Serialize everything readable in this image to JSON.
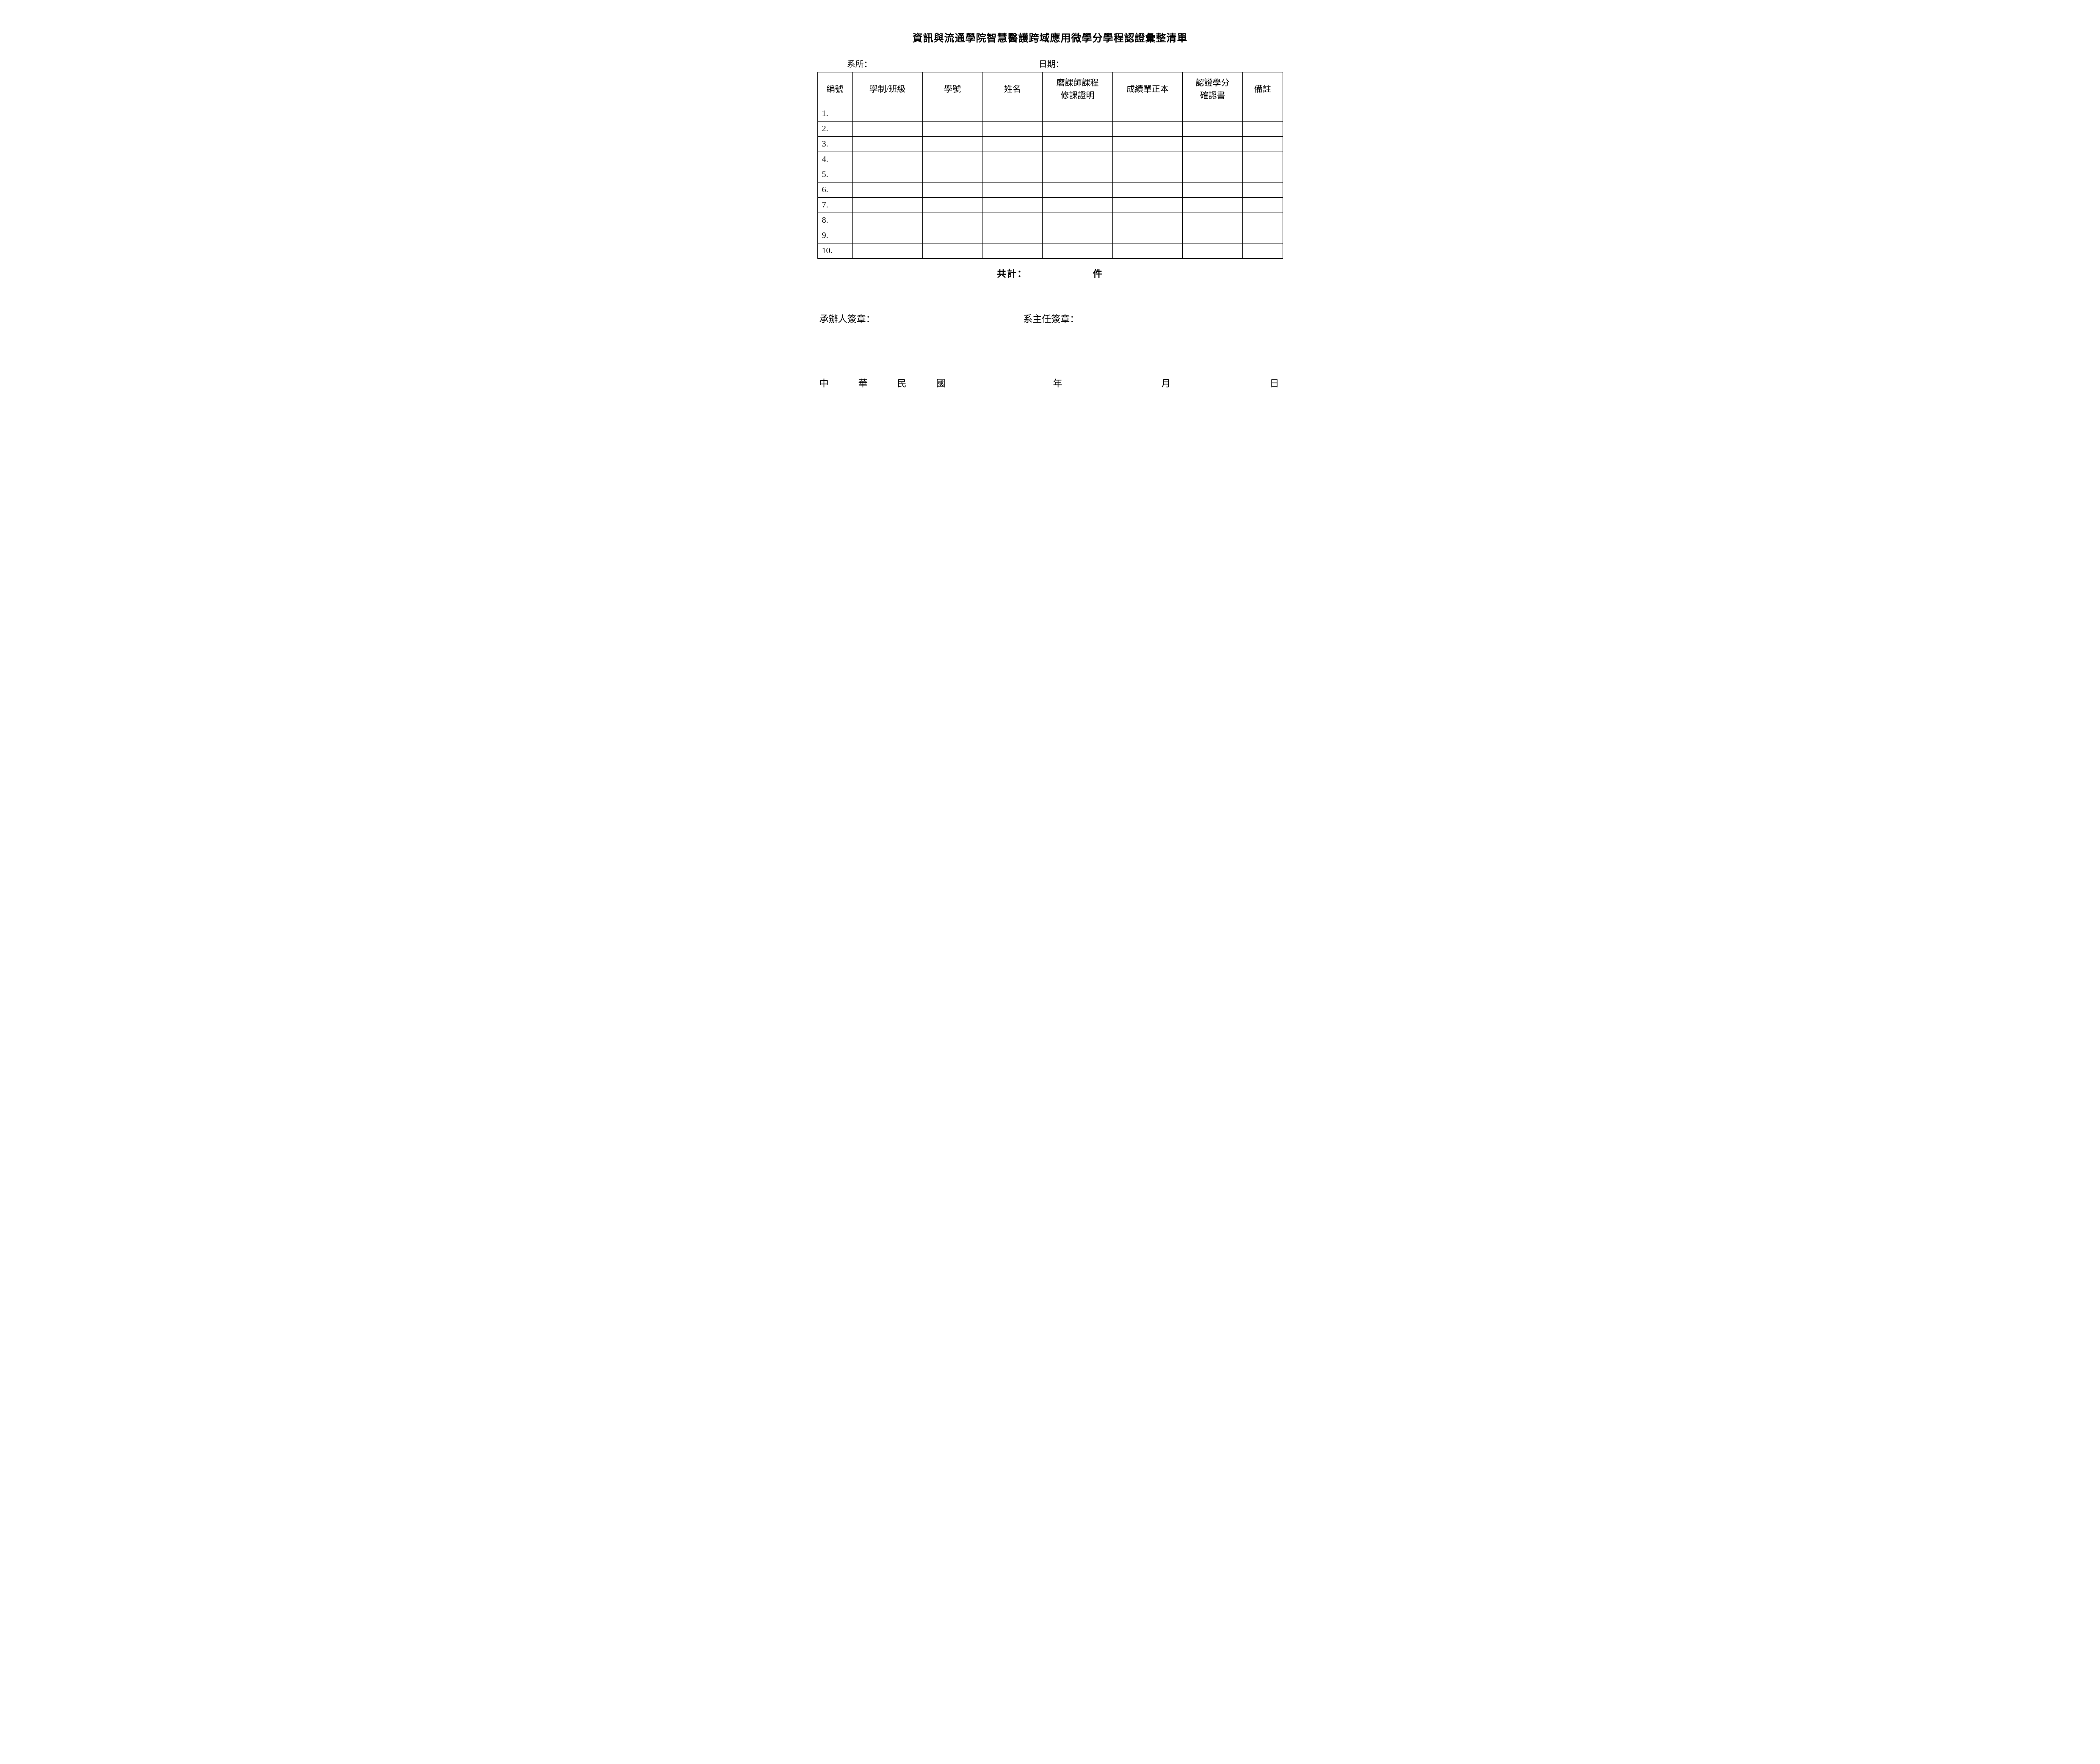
{
  "title": "資訊與流通學院智慧醫護跨域應用微學分學程認證彙整清單",
  "meta": {
    "dept_label": "系所：",
    "date_label": "日期："
  },
  "table": {
    "columns": [
      "編號",
      "學制/班級",
      "學號",
      "姓名",
      "磨課師課程\n修課證明",
      "成績單正本",
      "認證學分\n確認書",
      "備註"
    ],
    "col_classes": [
      "col-num",
      "col-class",
      "col-id",
      "col-name",
      "col-mooc",
      "col-transcript",
      "col-cert",
      "col-remark"
    ],
    "rows": [
      {
        "num": "1."
      },
      {
        "num": "2."
      },
      {
        "num": "3."
      },
      {
        "num": "4."
      },
      {
        "num": "5."
      },
      {
        "num": "6."
      },
      {
        "num": "7."
      },
      {
        "num": "8."
      },
      {
        "num": "9."
      },
      {
        "num": "10."
      }
    ]
  },
  "total": {
    "prefix": "共計：",
    "suffix": "件"
  },
  "signatures": {
    "handler": "承辦人簽章：",
    "chair": "系主任簽章："
  },
  "date_line": {
    "country": "中　華　民　國",
    "year": "年",
    "month": "月",
    "day": "日"
  },
  "styling": {
    "background_color": "#ffffff",
    "text_color": "#000000",
    "border_color": "#000000",
    "title_fontsize": 24,
    "body_fontsize": 20,
    "header_row_height": 80,
    "data_row_height": 36
  }
}
